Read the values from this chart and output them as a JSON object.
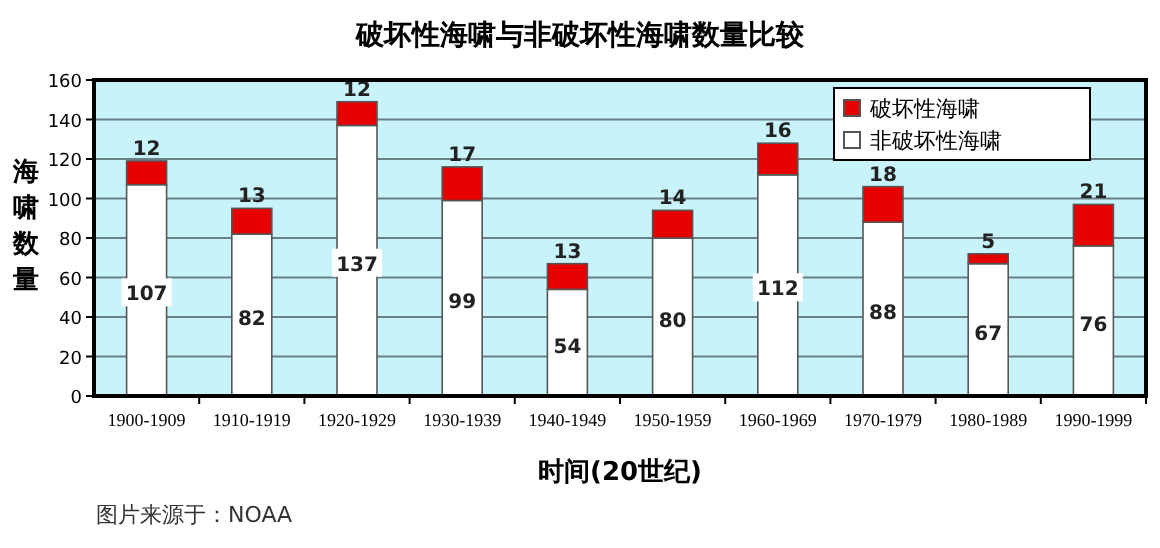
{
  "chart_data": {
    "type": "bar",
    "title": "破坏性海啸与非破坏性海啸数量比较",
    "xlabel": "时间(20世纪)",
    "ylabel": "海啸数量",
    "annotations": [
      "图片来源于：NOAA"
    ],
    "categories": [
      "1900-1909",
      "1910-1919",
      "1920-1929",
      "1930-1939",
      "1940-1949",
      "1950-1959",
      "1960-1969",
      "1970-1979",
      "1980-1989",
      "1990-1999"
    ],
    "stacked": true,
    "data_labels": true,
    "grid": "y",
    "legend": "top right",
    "ylim": [
      0,
      160
    ],
    "yticks": [
      0,
      20,
      40,
      60,
      80,
      100,
      120,
      140,
      160
    ],
    "series": [
      {
        "name": "非破坏性海啸",
        "color": "#ffffff",
        "values": [
          107,
          82,
          137,
          99,
          54,
          80,
          112,
          88,
          67,
          76
        ]
      },
      {
        "name": "破坏性海啸",
        "color": "#e60000",
        "values": [
          12,
          13,
          12,
          17,
          13,
          14,
          16,
          18,
          5,
          21
        ]
      }
    ]
  }
}
